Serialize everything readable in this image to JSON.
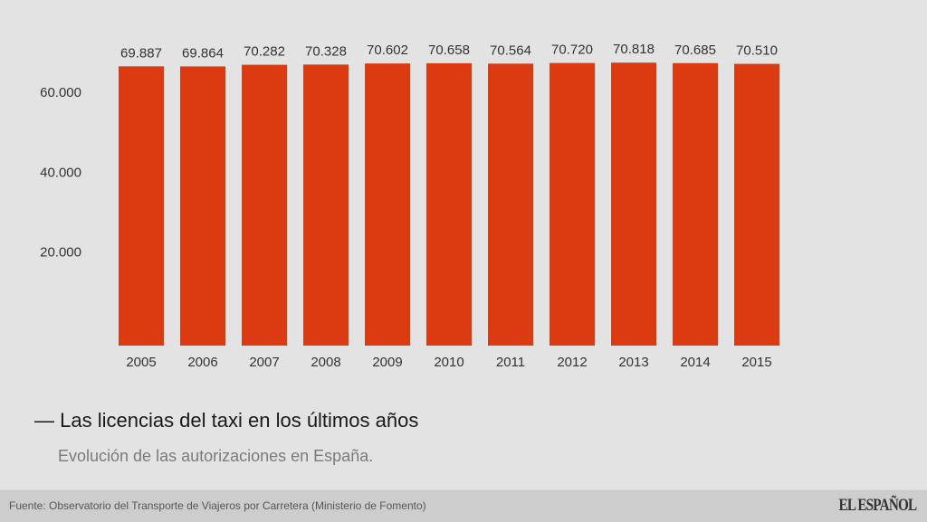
{
  "chart_data": {
    "type": "bar",
    "title": "— Las licencias del taxi en los últimos años",
    "subtitle": "Evolución de las autorizaciones en España.",
    "categories": [
      "2005",
      "2006",
      "2007",
      "2008",
      "2009",
      "2010",
      "2011",
      "2012",
      "2013",
      "2014",
      "2015"
    ],
    "values": [
      69887,
      69864,
      70282,
      70328,
      70602,
      70658,
      70564,
      70720,
      70818,
      70685,
      70510
    ],
    "value_labels": [
      "69.887",
      "69.864",
      "70.282",
      "70.328",
      "70.602",
      "70.658",
      "70.564",
      "70.720",
      "70.818",
      "70.685",
      "70.510"
    ],
    "yticks": [
      20000,
      40000,
      60000
    ],
    "ytick_labels": [
      "20.000",
      "40.000",
      "60.000"
    ],
    "ylim": [
      0,
      72000
    ],
    "grid": false,
    "xlabel": "",
    "ylabel": "",
    "colors": {
      "bar": "#dc3a10",
      "background": "#e3e3e3",
      "text": "#333333"
    }
  },
  "footer": {
    "source": "Fuente: Observatorio del Transporte de Viajeros por Carretera (Ministerio de Fomento)",
    "logo": "EL ESPAÑOL"
  }
}
